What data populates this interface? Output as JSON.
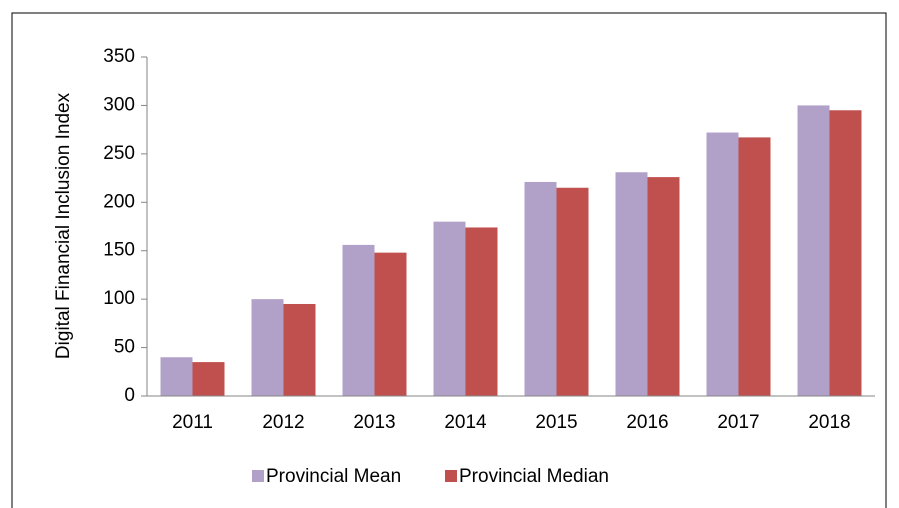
{
  "chart_data": {
    "type": "bar",
    "ylabel": "Digital Financial Inclusion Index",
    "categories": [
      "2011",
      "2012",
      "2013",
      "2014",
      "2015",
      "2016",
      "2017",
      "2018"
    ],
    "series": [
      {
        "name": "Provincial Mean",
        "color": "#b1a0c7",
        "values": [
          40,
          100,
          156,
          180,
          221,
          231,
          272,
          300
        ]
      },
      {
        "name": "Provincial Median",
        "color": "#c0504d",
        "values": [
          35,
          95,
          148,
          174,
          215,
          226,
          267,
          295
        ]
      }
    ],
    "ylim": [
      0,
      350
    ],
    "yticks": [
      0,
      50,
      100,
      150,
      200,
      250,
      300,
      350
    ],
    "legend": "bottom"
  }
}
